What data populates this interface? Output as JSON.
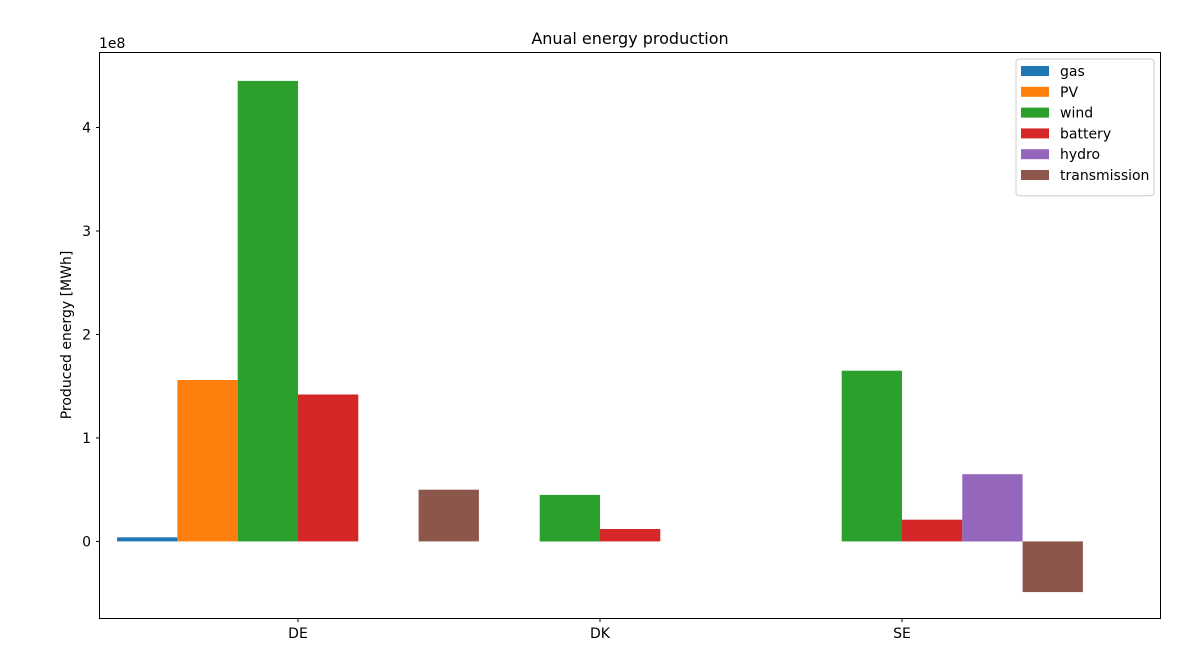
{
  "chart_data": {
    "type": "bar",
    "title": "Anual energy production",
    "xlabel": "",
    "ylabel": "Produced energy [MWh]",
    "y_scale_label": "1e8",
    "categories": [
      "DE",
      "DK",
      "SE"
    ],
    "ylim": [
      -0.74,
      4.72
    ],
    "yticks": [
      0,
      1,
      2,
      3,
      4
    ],
    "ytick_labels": [
      "0",
      "1",
      "2",
      "3",
      "4"
    ],
    "grid": false,
    "legend_position": "top-right",
    "series": [
      {
        "name": "gas",
        "color": "#1f77b4",
        "values": [
          0.04,
          0,
          0
        ]
      },
      {
        "name": "PV",
        "color": "#ff7f0e",
        "values": [
          1.56,
          0,
          0
        ]
      },
      {
        "name": "wind",
        "color": "#2ca02c",
        "values": [
          4.45,
          0.45,
          1.65
        ]
      },
      {
        "name": "battery",
        "color": "#d62728",
        "values": [
          1.42,
          0.12,
          0.21
        ]
      },
      {
        "name": "hydro",
        "color": "#9467bd",
        "values": [
          0,
          0,
          0.65
        ]
      },
      {
        "name": "transmission",
        "color": "#8c564b",
        "values": [
          0.5,
          0,
          -0.49
        ]
      }
    ]
  }
}
